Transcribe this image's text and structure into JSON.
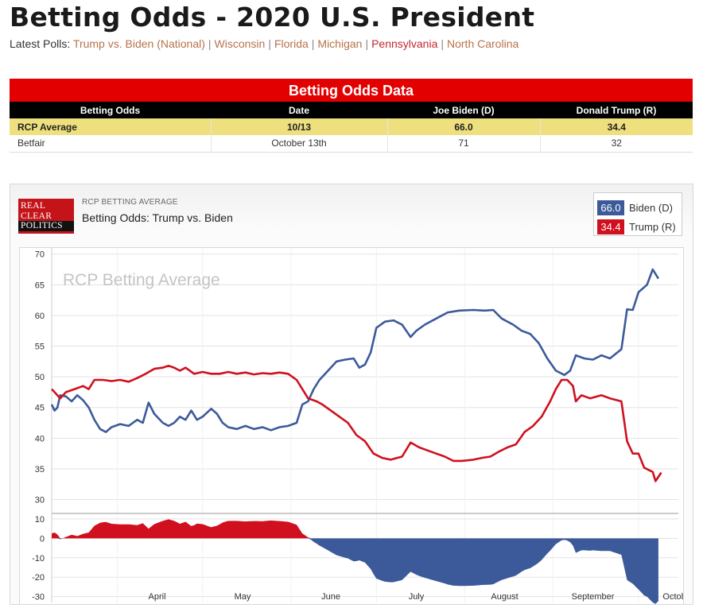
{
  "page": {
    "title": "Betting Odds - 2020 U.S. President",
    "polls_label": "Latest Polls:",
    "poll_links": [
      {
        "label": "Trump vs. Biden (National)"
      },
      {
        "label": "Wisconsin"
      },
      {
        "label": "Florida"
      },
      {
        "label": "Michigan"
      },
      {
        "label": "Pennsylvania"
      },
      {
        "label": "North Carolina"
      }
    ],
    "social": [
      {
        "icon": "twitter-icon",
        "color": "#55acee"
      },
      {
        "icon": "facebook-icon",
        "color": "#3b5998"
      },
      {
        "icon": "plus-icon",
        "color": "#000000"
      }
    ]
  },
  "table": {
    "caption": "Betting Odds Data",
    "headers": [
      "Betting Odds",
      "Date",
      "Joe Biden (D)",
      "Donald Trump (R)"
    ],
    "rows": [
      [
        "RCP Average",
        "10/13",
        "66.0",
        "34.4"
      ],
      [
        "Betfair",
        "October 13th",
        "71",
        "32"
      ]
    ]
  },
  "chart_panel": {
    "logo_lines": [
      "REAL",
      "CLEAR",
      "POLITICS"
    ],
    "kicker": "RCP BETTING AVERAGE",
    "title": "Betting Odds: Trump vs. Biden",
    "watermark": "RCP Betting Average",
    "legend": [
      {
        "value": "66.0",
        "label": "Biden (D)",
        "color": "#3c5a9a"
      },
      {
        "value": "34.4",
        "label": "Trump (R)",
        "color": "#d0101e"
      }
    ]
  },
  "chart_data": {
    "type": "line",
    "x_unit": "date (2020)",
    "x_range": [
      "2020-03-09",
      "2020-10-15"
    ],
    "xticks": [
      "April",
      "May",
      "June",
      "July",
      "August",
      "September",
      "October"
    ],
    "yticks": [
      30,
      35,
      40,
      45,
      50,
      55,
      60,
      65,
      70
    ],
    "ylim": [
      28,
      71
    ],
    "grid": true,
    "series": [
      {
        "name": "Biden (D)",
        "color": "#3c5a9a",
        "points": [
          [
            "2020-03-09",
            45.5
          ],
          [
            "2020-03-10",
            44.5
          ],
          [
            "2020-03-11",
            45.0
          ],
          [
            "2020-03-12",
            47.0
          ],
          [
            "2020-03-14",
            46.8
          ],
          [
            "2020-03-16",
            46.0
          ],
          [
            "2020-03-18",
            47.0
          ],
          [
            "2020-03-20",
            46.2
          ],
          [
            "2020-03-22",
            45.0
          ],
          [
            "2020-03-24",
            43.0
          ],
          [
            "2020-03-26",
            41.5
          ],
          [
            "2020-03-28",
            41.0
          ],
          [
            "2020-03-30",
            41.8
          ],
          [
            "2020-04-02",
            42.3
          ],
          [
            "2020-04-05",
            42.0
          ],
          [
            "2020-04-08",
            43.0
          ],
          [
            "2020-04-10",
            42.5
          ],
          [
            "2020-04-12",
            45.8
          ],
          [
            "2020-04-14",
            44.0
          ],
          [
            "2020-04-17",
            42.5
          ],
          [
            "2020-04-19",
            42.0
          ],
          [
            "2020-04-21",
            42.5
          ],
          [
            "2020-04-23",
            43.5
          ],
          [
            "2020-04-25",
            43.0
          ],
          [
            "2020-04-27",
            44.5
          ],
          [
            "2020-04-29",
            43.0
          ],
          [
            "2020-05-01",
            43.5
          ],
          [
            "2020-05-04",
            44.8
          ],
          [
            "2020-05-06",
            44.0
          ],
          [
            "2020-05-08",
            42.5
          ],
          [
            "2020-05-10",
            41.8
          ],
          [
            "2020-05-13",
            41.5
          ],
          [
            "2020-05-16",
            42.0
          ],
          [
            "2020-05-19",
            41.5
          ],
          [
            "2020-05-22",
            41.8
          ],
          [
            "2020-05-25",
            41.3
          ],
          [
            "2020-05-28",
            41.8
          ],
          [
            "2020-05-31",
            42.0
          ],
          [
            "2020-06-03",
            42.5
          ],
          [
            "2020-06-05",
            45.5
          ],
          [
            "2020-06-07",
            46.0
          ],
          [
            "2020-06-09",
            48.0
          ],
          [
            "2020-06-11",
            49.5
          ],
          [
            "2020-06-13",
            50.5
          ],
          [
            "2020-06-15",
            51.5
          ],
          [
            "2020-06-17",
            52.5
          ],
          [
            "2020-06-20",
            52.8
          ],
          [
            "2020-06-23",
            53.0
          ],
          [
            "2020-06-25",
            51.5
          ],
          [
            "2020-06-27",
            52.0
          ],
          [
            "2020-06-29",
            54.0
          ],
          [
            "2020-07-01",
            58.0
          ],
          [
            "2020-07-04",
            59.0
          ],
          [
            "2020-07-07",
            59.2
          ],
          [
            "2020-07-10",
            58.5
          ],
          [
            "2020-07-13",
            56.5
          ],
          [
            "2020-07-15",
            57.5
          ],
          [
            "2020-07-18",
            58.5
          ],
          [
            "2020-07-22",
            59.5
          ],
          [
            "2020-07-26",
            60.5
          ],
          [
            "2020-07-30",
            60.8
          ],
          [
            "2020-08-04",
            60.9
          ],
          [
            "2020-08-08",
            60.8
          ],
          [
            "2020-08-11",
            60.9
          ],
          [
            "2020-08-14",
            59.5
          ],
          [
            "2020-08-18",
            58.5
          ],
          [
            "2020-08-21",
            57.5
          ],
          [
            "2020-08-24",
            57.0
          ],
          [
            "2020-08-27",
            55.5
          ],
          [
            "2020-08-30",
            53.0
          ],
          [
            "2020-09-02",
            51.0
          ],
          [
            "2020-09-05",
            50.3
          ],
          [
            "2020-09-07",
            51.0
          ],
          [
            "2020-09-09",
            53.5
          ],
          [
            "2020-09-12",
            53.0
          ],
          [
            "2020-09-15",
            52.8
          ],
          [
            "2020-09-18",
            53.5
          ],
          [
            "2020-09-21",
            53.0
          ],
          [
            "2020-09-25",
            54.5
          ],
          [
            "2020-09-27",
            61.0
          ],
          [
            "2020-09-29",
            60.9
          ],
          [
            "2020-10-01",
            63.8
          ],
          [
            "2020-10-04",
            65.0
          ],
          [
            "2020-10-06",
            67.5
          ],
          [
            "2020-10-08",
            66.0
          ]
        ]
      },
      {
        "name": "Trump (R)",
        "color": "#d0101e",
        "points": [
          [
            "2020-03-09",
            48.0
          ],
          [
            "2020-03-10",
            47.5
          ],
          [
            "2020-03-12",
            46.5
          ],
          [
            "2020-03-14",
            47.5
          ],
          [
            "2020-03-17",
            48.0
          ],
          [
            "2020-03-20",
            48.5
          ],
          [
            "2020-03-22",
            48.0
          ],
          [
            "2020-03-24",
            49.5
          ],
          [
            "2020-03-27",
            49.5
          ],
          [
            "2020-03-30",
            49.3
          ],
          [
            "2020-04-02",
            49.5
          ],
          [
            "2020-04-05",
            49.2
          ],
          [
            "2020-04-08",
            49.8
          ],
          [
            "2020-04-11",
            50.5
          ],
          [
            "2020-04-14",
            51.3
          ],
          [
            "2020-04-17",
            51.5
          ],
          [
            "2020-04-19",
            51.8
          ],
          [
            "2020-04-21",
            51.5
          ],
          [
            "2020-04-23",
            51.0
          ],
          [
            "2020-04-25",
            51.5
          ],
          [
            "2020-04-28",
            50.5
          ],
          [
            "2020-05-01",
            50.8
          ],
          [
            "2020-05-04",
            50.5
          ],
          [
            "2020-05-07",
            50.5
          ],
          [
            "2020-05-10",
            50.8
          ],
          [
            "2020-05-13",
            50.5
          ],
          [
            "2020-05-16",
            50.7
          ],
          [
            "2020-05-19",
            50.4
          ],
          [
            "2020-05-22",
            50.6
          ],
          [
            "2020-05-25",
            50.5
          ],
          [
            "2020-05-28",
            50.7
          ],
          [
            "2020-05-31",
            50.5
          ],
          [
            "2020-06-03",
            49.5
          ],
          [
            "2020-06-05",
            48.0
          ],
          [
            "2020-06-07",
            46.5
          ],
          [
            "2020-06-10",
            46.0
          ],
          [
            "2020-06-12",
            45.5
          ],
          [
            "2020-06-15",
            44.5
          ],
          [
            "2020-06-18",
            43.5
          ],
          [
            "2020-06-21",
            42.5
          ],
          [
            "2020-06-24",
            40.5
          ],
          [
            "2020-06-27",
            39.5
          ],
          [
            "2020-06-30",
            37.5
          ],
          [
            "2020-07-03",
            36.8
          ],
          [
            "2020-07-06",
            36.5
          ],
          [
            "2020-07-10",
            37.0
          ],
          [
            "2020-07-13",
            39.3
          ],
          [
            "2020-07-16",
            38.5
          ],
          [
            "2020-07-19",
            38.0
          ],
          [
            "2020-07-22",
            37.5
          ],
          [
            "2020-07-25",
            37.0
          ],
          [
            "2020-07-28",
            36.3
          ],
          [
            "2020-07-31",
            36.3
          ],
          [
            "2020-08-04",
            36.5
          ],
          [
            "2020-08-07",
            36.8
          ],
          [
            "2020-08-10",
            37.0
          ],
          [
            "2020-08-13",
            37.8
          ],
          [
            "2020-08-16",
            38.5
          ],
          [
            "2020-08-19",
            39.0
          ],
          [
            "2020-08-22",
            41.0
          ],
          [
            "2020-08-25",
            42.0
          ],
          [
            "2020-08-28",
            43.5
          ],
          [
            "2020-08-31",
            46.0
          ],
          [
            "2020-09-02",
            48.0
          ],
          [
            "2020-09-04",
            49.5
          ],
          [
            "2020-09-06",
            49.5
          ],
          [
            "2020-09-08",
            48.5
          ],
          [
            "2020-09-09",
            46.0
          ],
          [
            "2020-09-11",
            47.0
          ],
          [
            "2020-09-14",
            46.5
          ],
          [
            "2020-09-18",
            47.0
          ],
          [
            "2020-09-21",
            46.5
          ],
          [
            "2020-09-25",
            46.0
          ],
          [
            "2020-09-27",
            39.5
          ],
          [
            "2020-09-29",
            37.5
          ],
          [
            "2020-10-01",
            37.5
          ],
          [
            "2020-10-03",
            35.2
          ],
          [
            "2020-10-06",
            34.5
          ],
          [
            "2020-10-07",
            33.0
          ],
          [
            "2020-10-09",
            34.4
          ]
        ]
      }
    ],
    "spread": {
      "yticks": [
        -30,
        -20,
        -10,
        0,
        10
      ],
      "ylim": [
        -33,
        12
      ]
    }
  }
}
